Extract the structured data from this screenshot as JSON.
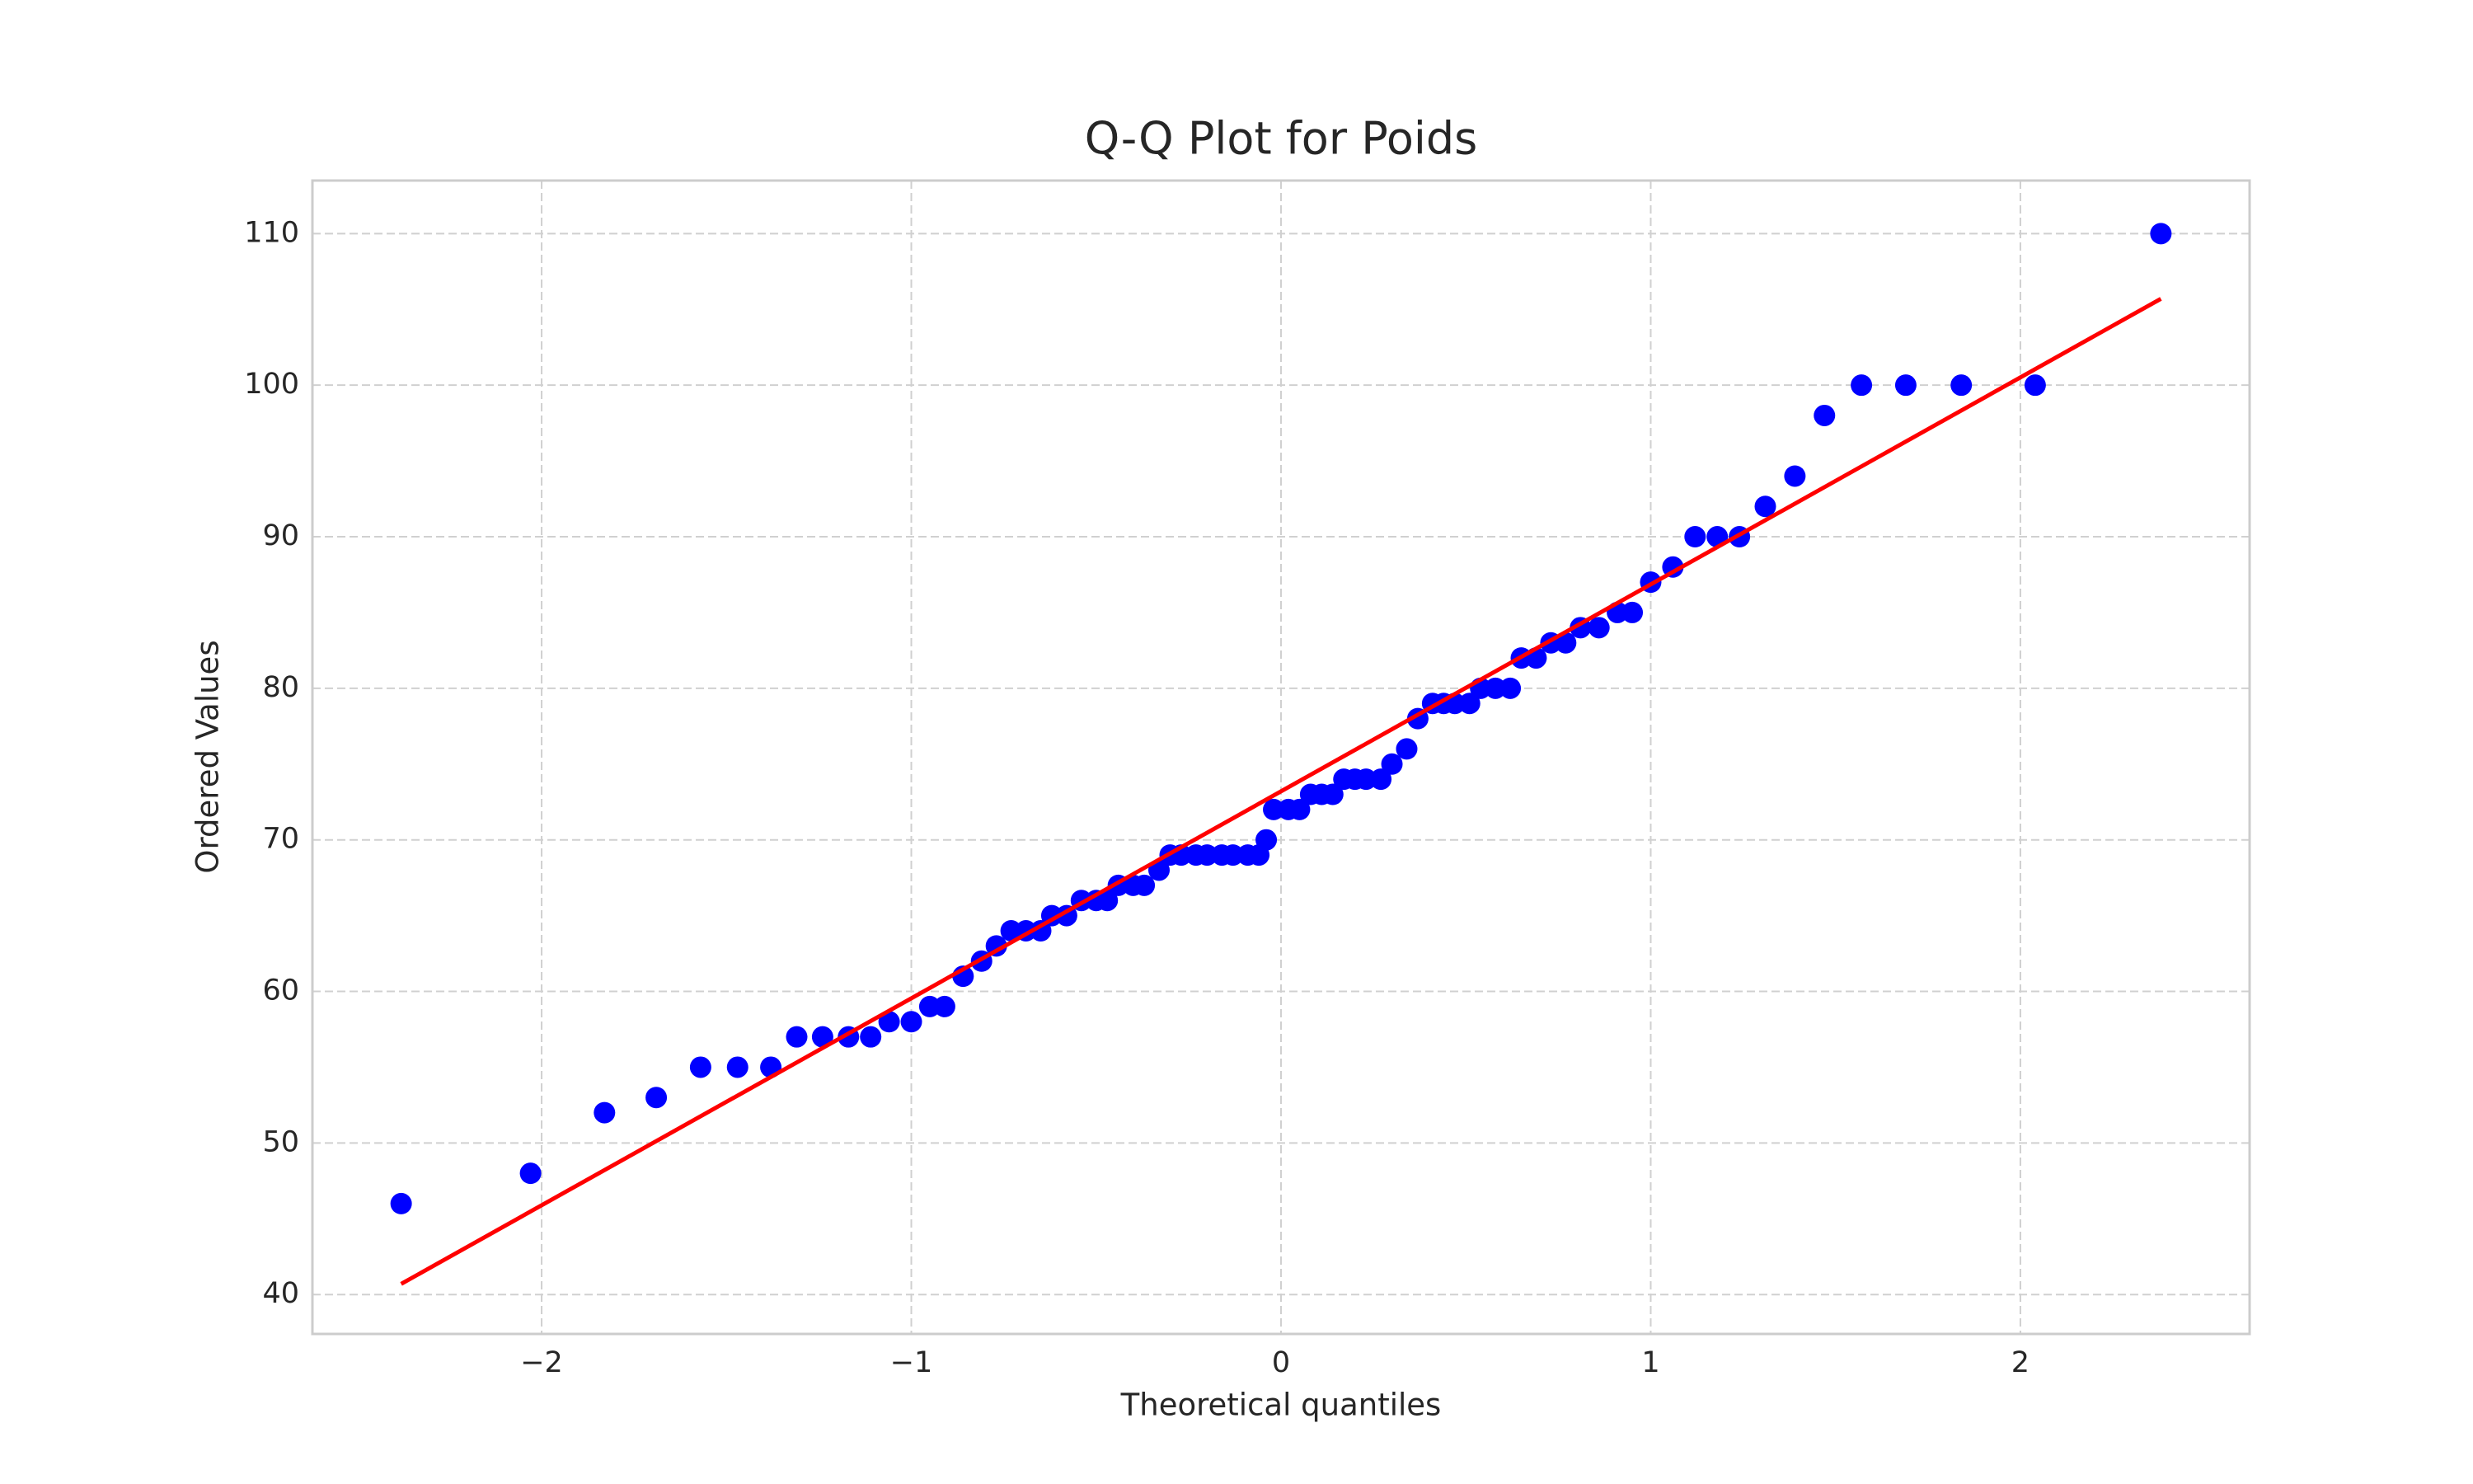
{
  "chart_data": {
    "type": "scatter",
    "title": "Q-Q Plot for Poids",
    "xlabel": "Theoretical quantiles",
    "ylabel": "Ordered Values",
    "series": [
      {
        "color": "#0000ff",
        "mode": "markers",
        "x": [
          -2.38,
          -2.03,
          -1.83,
          -1.69,
          -1.57,
          -1.47,
          -1.38,
          -1.31,
          -1.24,
          -1.17,
          -1.11,
          -1.06,
          -1.0,
          -0.95,
          -0.91,
          -0.86,
          -0.81,
          -0.77,
          -0.73,
          -0.69,
          -0.65,
          -0.62,
          -0.58,
          -0.54,
          -0.5,
          -0.47,
          -0.44,
          -0.4,
          -0.37,
          -0.33,
          -0.3,
          -0.27,
          -0.23,
          -0.2,
          -0.16,
          -0.13,
          -0.09,
          -0.06,
          -0.04,
          -0.02,
          0.02,
          0.05,
          0.08,
          0.11,
          0.14,
          0.17,
          0.2,
          0.23,
          0.27,
          0.3,
          0.34,
          0.37,
          0.41,
          0.44,
          0.47,
          0.51,
          0.54,
          0.58,
          0.62,
          0.65,
          0.69,
          0.73,
          0.77,
          0.81,
          0.86,
          0.91,
          0.95,
          1.0,
          1.06,
          1.12,
          1.18,
          1.24,
          1.31,
          1.39,
          1.47,
          1.57,
          1.69,
          1.84,
          2.04,
          2.38
        ],
        "values": [
          46,
          48,
          52,
          53,
          55,
          55,
          55,
          57,
          57,
          57,
          57,
          58,
          58,
          59,
          59,
          61,
          62,
          63,
          64,
          64,
          64,
          65,
          65,
          66,
          66,
          66,
          67,
          67,
          67,
          68,
          69,
          69,
          69,
          69,
          69,
          69,
          69,
          69,
          70,
          72,
          72,
          72,
          73,
          73,
          73,
          74,
          74,
          74,
          74,
          75,
          76,
          78,
          79,
          79,
          79,
          79,
          80,
          80,
          80,
          82,
          82,
          83,
          83,
          84,
          84,
          85,
          85,
          87,
          88,
          90,
          90,
          90,
          92,
          94,
          98,
          100,
          100,
          100,
          100,
          110
        ]
      },
      {
        "color": "#ff0000",
        "mode": "line",
        "x": [
          -2.38,
          2.38
        ],
        "values": [
          40.7,
          105.7
        ]
      }
    ],
    "xlim": [
      -2.62,
      2.62
    ],
    "xticks": [
      {
        "value": -2,
        "label": "−2"
      },
      {
        "value": -1,
        "label": "−1"
      },
      0,
      1,
      2
    ],
    "ylim": [
      37.4,
      113.5
    ],
    "yticks": [
      40,
      50,
      60,
      70,
      80,
      90,
      100,
      110
    ],
    "grid": true
  }
}
